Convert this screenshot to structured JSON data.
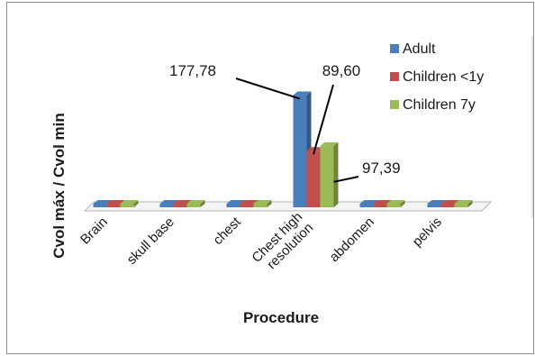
{
  "chart_data": {
    "type": "bar",
    "style": "3d-clustered-column",
    "categories": [
      "Brain",
      "skull base",
      "chest",
      "Chest high\nresolution",
      "abdomen",
      "pelvis"
    ],
    "series": [
      {
        "name": "Adult",
        "color": "#4a7ebb",
        "values": [
          1.5,
          1.5,
          1.3,
          177.78,
          1.2,
          1.5
        ]
      },
      {
        "name": "Children <1y",
        "color": "#c0504d",
        "values": [
          1.5,
          1.6,
          1.0,
          89.6,
          1.2,
          1.1
        ]
      },
      {
        "name": "Children 7y",
        "color": "#9bbb59",
        "values": [
          2.4,
          2.2,
          0.9,
          97.39,
          1.3,
          1.1
        ]
      }
    ],
    "data_labels": [
      {
        "category": "Chest high\nresolution",
        "series": "Adult",
        "text": "177,78"
      },
      {
        "category": "Chest high\nresolution",
        "series": "Children <1y",
        "text": "89,60"
      },
      {
        "category": "Chest high\nresolution",
        "series": "Children 7y",
        "text": "97,39"
      }
    ],
    "xlabel": "Procedure",
    "ylabel": "Cvol máx / Cvol min",
    "ylim": [
      0,
      180
    ],
    "grid": false,
    "legend": "top-right"
  }
}
